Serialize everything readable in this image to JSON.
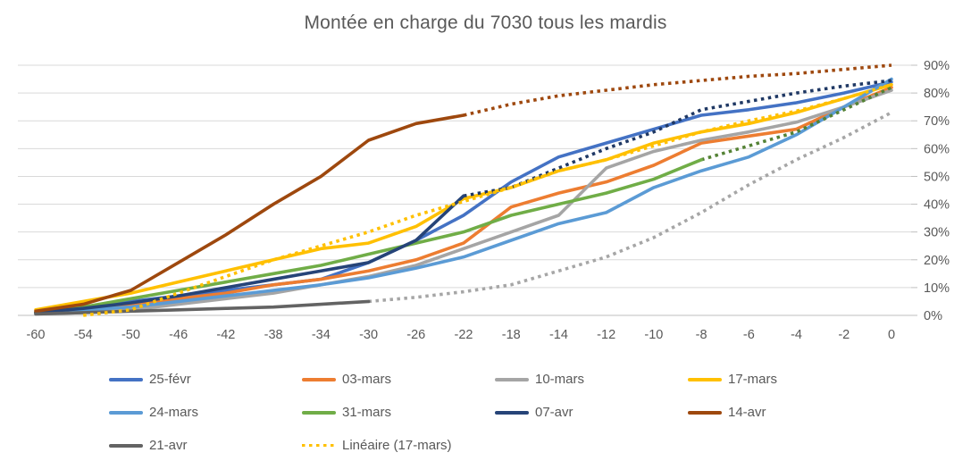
{
  "chart_data": {
    "type": "line",
    "title": "Montée en charge du 7030 tous les mardis",
    "categories": [
      -60,
      -54,
      -50,
      -46,
      -42,
      -38,
      -34,
      -30,
      -26,
      -22,
      -18,
      -14,
      -12,
      -10,
      -8,
      -6,
      -4,
      -2,
      0
    ],
    "x_axis": {
      "tick_labels": [
        "-60",
        "-54",
        "-50",
        "-46",
        "-42",
        "-38",
        "-34",
        "-30",
        "-26",
        "-22",
        "-18",
        "-14",
        "-12",
        "-10",
        "-8",
        "-6",
        "-4",
        "-2",
        "0"
      ]
    },
    "y_axis": {
      "min": 0,
      "max": 90,
      "step": 10,
      "side": "right",
      "unit": "%",
      "tick_labels": [
        "0%",
        "10%",
        "20%",
        "30%",
        "40%",
        "50%",
        "60%",
        "70%",
        "80%",
        "90%"
      ]
    },
    "grid": true,
    "legend_position": "bottom",
    "colors": {
      "title_text": "#595959",
      "axis_text": "#595959",
      "gridline": "#D9D9D9",
      "axis_line": "#BFBFBF"
    },
    "series": [
      {
        "name": "25-févr",
        "color": "#4472C4",
        "style": "solid",
        "values": [
          1,
          3,
          5,
          7,
          9,
          11,
          13,
          19,
          27,
          36,
          48,
          57,
          62,
          67,
          72,
          74,
          76.5,
          80,
          84
        ]
      },
      {
        "name": "03-mars",
        "color": "#ED7D31",
        "style": "solid",
        "values": [
          1,
          2,
          4,
          6,
          8,
          11,
          13,
          16,
          20,
          26,
          39,
          44,
          48,
          54,
          62,
          64.5,
          67,
          75,
          82
        ]
      },
      {
        "name": "10-mars",
        "color": "#A5A5A5",
        "style": "solid",
        "values": [
          0.5,
          1,
          2,
          4,
          6,
          8,
          11,
          14,
          18,
          24,
          30,
          36,
          53,
          59,
          63,
          66,
          69.5,
          75,
          81
        ]
      },
      {
        "name": "17-mars",
        "color": "#FFC000",
        "style": "solid",
        "values": [
          2,
          5,
          8,
          12,
          16,
          20,
          24,
          26,
          32,
          42,
          46,
          52,
          56,
          62,
          66,
          69,
          73,
          78,
          83
        ]
      },
      {
        "name": "24-mars",
        "color": "#5B9BD5",
        "style": "solid",
        "values": [
          1,
          2,
          3,
          5,
          7,
          9,
          11,
          13.5,
          17,
          21,
          27,
          33,
          37,
          46,
          52,
          57,
          65,
          75,
          85
        ]
      },
      {
        "name": "31-mars",
        "color": "#70AD47",
        "style": "solid",
        "solid_until": -8,
        "projection_color": "#548235",
        "values": [
          1,
          3,
          6,
          9,
          12,
          15,
          18,
          22,
          26,
          30,
          36,
          40,
          44,
          49,
          56,
          61,
          66,
          74,
          82
        ]
      },
      {
        "name": "07-avr",
        "color": "#264478",
        "style": "solid",
        "solid_until": -22,
        "projection_color": "#1F3864",
        "values": [
          1,
          2.5,
          4.5,
          7,
          10,
          13,
          16,
          19,
          27,
          43,
          46,
          53,
          60,
          66,
          74,
          77,
          80,
          82.5,
          84.5
        ]
      },
      {
        "name": "14-avr",
        "color": "#9E480E",
        "style": "solid",
        "solid_until": -22,
        "projection_color": "#9E480E",
        "values": [
          1.5,
          4,
          9,
          19,
          29,
          40,
          50,
          63,
          69,
          72,
          76,
          79,
          81,
          83,
          84.5,
          86,
          87,
          88.5,
          90
        ]
      },
      {
        "name": "21-avr",
        "color": "#636363",
        "style": "solid",
        "solid_until": -30,
        "projection_color": "#A6A6A6",
        "values": [
          0.5,
          1,
          1.5,
          2,
          2.5,
          3,
          4,
          5,
          6.5,
          8.5,
          11,
          16,
          21,
          28,
          37,
          47,
          56,
          64,
          73
        ]
      },
      {
        "name": "Linéaire (17-mars)",
        "color": "#FFC000",
        "style": "dotted",
        "values": [
          null,
          0,
          2,
          8,
          14,
          20,
          25,
          30,
          36,
          41,
          46,
          52,
          56,
          61,
          66,
          70,
          73.5,
          78,
          83
        ]
      }
    ]
  }
}
